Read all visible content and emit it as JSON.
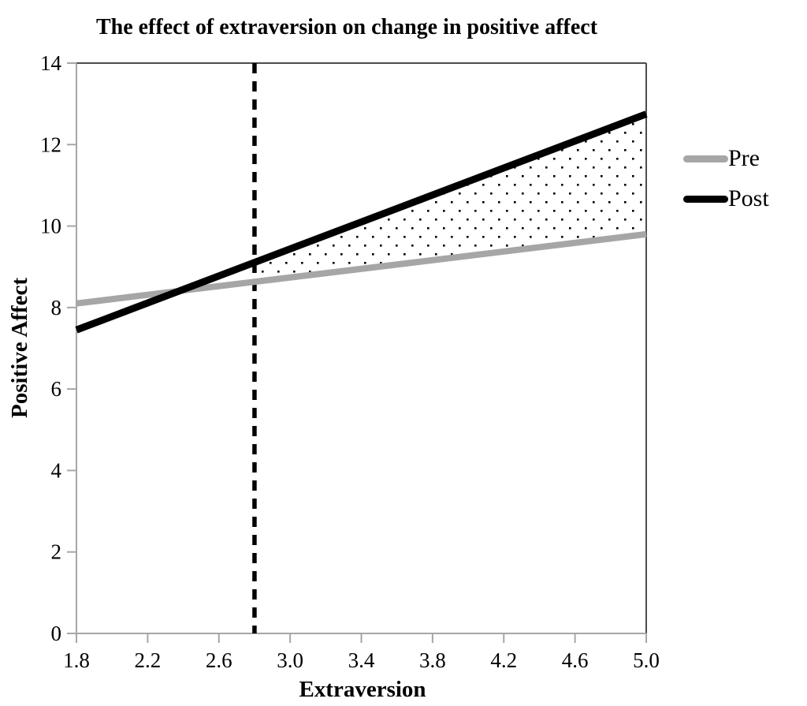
{
  "chart_data": {
    "type": "line",
    "title": "The effect of extraversion on change in positive affect",
    "xlabel": "Extraversion",
    "ylabel": "Positive Affect",
    "xlim": [
      1.8,
      5.0
    ],
    "ylim": [
      0,
      14
    ],
    "x_ticks": [
      1.8,
      2.2,
      2.6,
      3.0,
      3.4,
      3.8,
      4.2,
      4.6,
      5.0
    ],
    "x_tick_labels": [
      "1.8",
      "2.2",
      "2.6",
      "3.0",
      "3.4",
      "3.8",
      "4.2",
      "4.6",
      "5.0"
    ],
    "y_ticks": [
      0,
      2,
      4,
      6,
      8,
      10,
      12,
      14
    ],
    "y_tick_labels": [
      "0",
      "2",
      "4",
      "6",
      "8",
      "10",
      "12",
      "14"
    ],
    "grid": false,
    "legend_position": "right",
    "axis_color": "#a6a6a6",
    "frame_color": "#4d4d4d",
    "series": [
      {
        "name": "Pre",
        "color": "#a6a6a6",
        "line_width": 8,
        "x": [
          1.8,
          5.0
        ],
        "y": [
          8.1,
          9.8
        ]
      },
      {
        "name": "Post",
        "color": "#000000",
        "line_width": 9,
        "x": [
          1.8,
          5.0
        ],
        "y": [
          7.45,
          12.75
        ]
      }
    ],
    "reference_line": {
      "x": 2.8,
      "style": "dashed",
      "color": "#000000"
    },
    "shaded_region": {
      "from_x": 2.8,
      "to_x": 5.0,
      "between": [
        "Post",
        "Pre"
      ],
      "fill": "black-dot-stipple",
      "dot_color": "#000000"
    }
  },
  "legend": {
    "items": [
      {
        "label": "Pre",
        "color": "#a6a6a6"
      },
      {
        "label": "Post",
        "color": "#000000"
      }
    ]
  }
}
